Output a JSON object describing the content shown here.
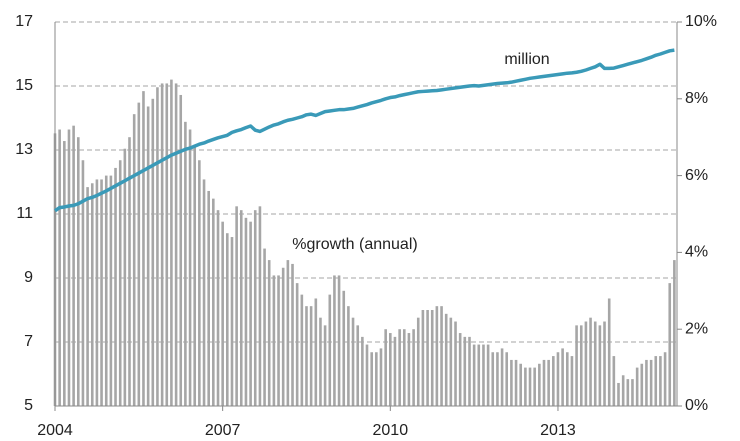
{
  "chart_data": {
    "type": "combo",
    "x": [
      2004,
      2004.083,
      2004.167,
      2004.25,
      2004.333,
      2004.417,
      2004.5,
      2004.583,
      2004.667,
      2004.75,
      2004.833,
      2004.917,
      2005,
      2005.083,
      2005.167,
      2005.25,
      2005.333,
      2005.417,
      2005.5,
      2005.583,
      2005.667,
      2005.75,
      2005.833,
      2005.917,
      2006,
      2006.083,
      2006.167,
      2006.25,
      2006.333,
      2006.417,
      2006.5,
      2006.583,
      2006.667,
      2006.75,
      2006.833,
      2006.917,
      2007,
      2007.083,
      2007.167,
      2007.25,
      2007.333,
      2007.417,
      2007.5,
      2007.583,
      2007.667,
      2007.75,
      2007.833,
      2007.917,
      2008,
      2008.083,
      2008.167,
      2008.25,
      2008.333,
      2008.417,
      2008.5,
      2008.583,
      2008.667,
      2008.75,
      2008.833,
      2008.917,
      2009,
      2009.083,
      2009.167,
      2009.25,
      2009.333,
      2009.417,
      2009.5,
      2009.583,
      2009.667,
      2009.75,
      2009.833,
      2009.917,
      2010,
      2010.083,
      2010.167,
      2010.25,
      2010.333,
      2010.417,
      2010.5,
      2010.583,
      2010.667,
      2010.75,
      2010.833,
      2010.917,
      2011,
      2011.083,
      2011.167,
      2011.25,
      2011.333,
      2011.417,
      2011.5,
      2011.583,
      2011.667,
      2011.75,
      2011.833,
      2011.917,
      2012,
      2012.083,
      2012.167,
      2012.25,
      2012.333,
      2012.417,
      2012.5,
      2012.583,
      2012.667,
      2012.75,
      2012.833,
      2012.917,
      2013,
      2013.083,
      2013.167,
      2013.25,
      2013.333,
      2013.417,
      2013.5,
      2013.583,
      2013.667,
      2013.75,
      2013.833,
      2013.917,
      2014,
      2014.083,
      2014.167,
      2014.25,
      2014.333,
      2014.417,
      2014.5,
      2014.583,
      2014.667,
      2014.75,
      2014.833,
      2014.917,
      2015,
      2015.083
    ],
    "series": [
      {
        "name": "million",
        "color": "#3a9ab8",
        "axis": "y",
        "kind": "line",
        "values": [
          11.1,
          11.2,
          11.22,
          11.25,
          11.27,
          11.32,
          11.4,
          11.48,
          11.52,
          11.58,
          11.65,
          11.72,
          11.8,
          11.88,
          11.96,
          12.04,
          12.12,
          12.2,
          12.28,
          12.36,
          12.44,
          12.52,
          12.6,
          12.68,
          12.76,
          12.84,
          12.9,
          12.96,
          13.02,
          13.06,
          13.12,
          13.18,
          13.22,
          13.28,
          13.33,
          13.38,
          13.42,
          13.46,
          13.55,
          13.6,
          13.64,
          13.7,
          13.75,
          13.62,
          13.58,
          13.65,
          13.72,
          13.78,
          13.82,
          13.88,
          13.93,
          13.96,
          14.0,
          14.04,
          14.1,
          14.12,
          14.08,
          14.14,
          14.2,
          14.22,
          14.24,
          14.26,
          14.26,
          14.28,
          14.3,
          14.34,
          14.38,
          14.42,
          14.47,
          14.51,
          14.55,
          14.6,
          14.64,
          14.66,
          14.7,
          14.73,
          14.76,
          14.79,
          14.82,
          14.83,
          14.84,
          14.85,
          14.86,
          14.88,
          14.9,
          14.92,
          14.94,
          14.96,
          14.98,
          15.0,
          15.01,
          15.0,
          15.02,
          15.04,
          15.06,
          15.08,
          15.09,
          15.1,
          15.12,
          15.15,
          15.18,
          15.21,
          15.24,
          15.26,
          15.28,
          15.3,
          15.32,
          15.34,
          15.36,
          15.38,
          15.4,
          15.41,
          15.43,
          15.46,
          15.5,
          15.55,
          15.6,
          15.68,
          15.55,
          15.55,
          15.56,
          15.6,
          15.64,
          15.68,
          15.72,
          15.76,
          15.8,
          15.85,
          15.9,
          15.96,
          16.0,
          16.05,
          16.1,
          16.12
        ]
      },
      {
        "name": "%growth (annual)",
        "color": "#a6a6a6",
        "axis": "y2",
        "kind": "bar",
        "values": [
          7.1,
          7.2,
          6.9,
          7.2,
          7.3,
          7.0,
          6.4,
          5.7,
          5.8,
          5.9,
          5.9,
          6.0,
          6.0,
          6.2,
          6.4,
          6.7,
          7.0,
          7.6,
          7.9,
          8.2,
          7.8,
          8.0,
          8.3,
          8.4,
          8.4,
          8.5,
          8.4,
          8.1,
          7.4,
          7.2,
          6.8,
          6.4,
          5.9,
          5.6,
          5.4,
          5.1,
          4.8,
          4.5,
          4.4,
          5.2,
          5.1,
          4.9,
          4.8,
          5.1,
          5.2,
          4.1,
          3.8,
          3.4,
          3.4,
          3.6,
          3.8,
          3.7,
          3.2,
          2.9,
          2.6,
          2.6,
          2.8,
          2.3,
          2.1,
          2.9,
          3.4,
          3.4,
          3.0,
          2.6,
          2.3,
          2.1,
          1.8,
          1.6,
          1.4,
          1.4,
          1.5,
          2.0,
          1.9,
          1.8,
          2.0,
          2.0,
          1.9,
          2.0,
          2.3,
          2.5,
          2.5,
          2.5,
          2.6,
          2.6,
          2.4,
          2.3,
          2.2,
          1.9,
          1.8,
          1.8,
          1.6,
          1.6,
          1.6,
          1.6,
          1.4,
          1.4,
          1.5,
          1.4,
          1.2,
          1.2,
          1.1,
          1.0,
          1.0,
          1.0,
          1.1,
          1.2,
          1.2,
          1.3,
          1.4,
          1.5,
          1.4,
          1.3,
          2.1,
          2.1,
          2.2,
          2.3,
          2.2,
          2.1,
          2.2,
          2.8,
          1.3,
          0.6,
          0.8,
          0.7,
          0.7,
          1.0,
          1.1,
          1.2,
          1.2,
          1.3,
          1.3,
          1.4,
          3.2,
          3.8
        ]
      }
    ],
    "xlim": [
      2004,
      2015.13
    ],
    "xticks": [
      2004,
      2007,
      2010,
      2013
    ],
    "ylim": [
      5,
      17
    ],
    "yticks": [
      5,
      7,
      9,
      11,
      13,
      15,
      17
    ],
    "y2lim": [
      0,
      10
    ],
    "y2ticks": [
      {
        "value": 0,
        "label": "0%"
      },
      {
        "value": 2,
        "label": "2%"
      },
      {
        "value": 4,
        "label": "4%"
      },
      {
        "value": 6,
        "label": "6%"
      },
      {
        "value": 8,
        "label": "8%"
      },
      {
        "value": 10,
        "label": "10%"
      }
    ],
    "grid": true
  }
}
